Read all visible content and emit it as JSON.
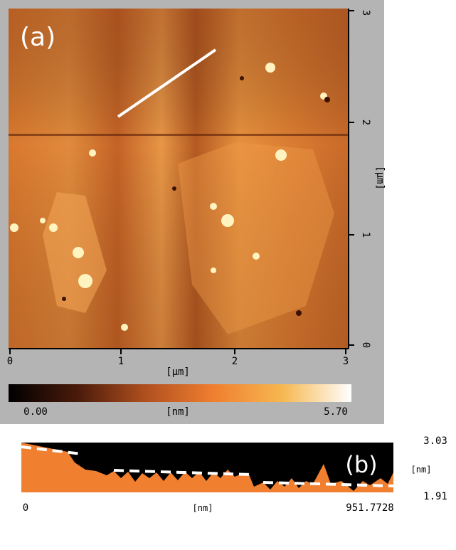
{
  "panel_a": {
    "label": "(a)",
    "x_axis": {
      "ticks": [
        "0",
        "1",
        "2",
        "3"
      ],
      "unit": "[µm]"
    },
    "y_axis": {
      "ticks": [
        "0",
        "1",
        "2",
        "3"
      ],
      "unit": "[µm]"
    },
    "colorbar": {
      "min": "0.00",
      "unit": "[nm]",
      "max": "5.70"
    }
  },
  "panel_b": {
    "label": "(b)",
    "y_axis": {
      "max": "3.03",
      "unit": "[nm]",
      "min": "1.91"
    },
    "x_axis": {
      "min": "0",
      "unit": "[nm]",
      "max": "951.7728"
    }
  }
}
